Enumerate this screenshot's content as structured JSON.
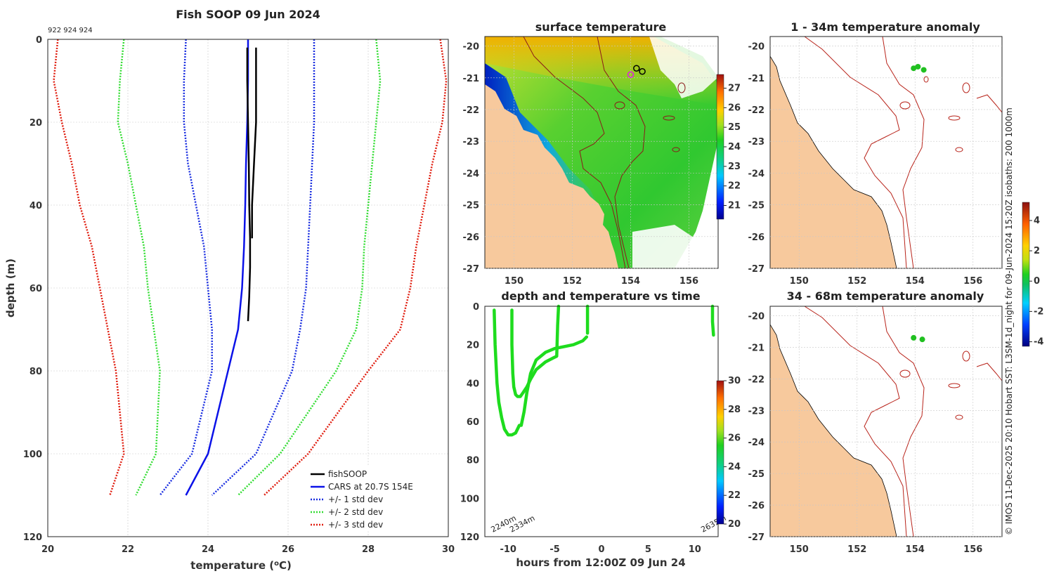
{
  "figure": {
    "title": "Fish SOOP 09 Jun 2024",
    "vessel_ids": "922 924 924",
    "side_credit": "© IMOS 11-Dec-2025 20:10 Hobart SST: L3SM-1d_night for 09-Jun-2024 15:20Z isobaths: 200  1000m",
    "colors": {
      "cars": "#0b12e8",
      "std1": "#1a2ee0",
      "std2": "#33dd33",
      "std3": "#e01e10",
      "soop": "#000000",
      "land": "#f7c99d",
      "track": "#1edc1e",
      "isobath": "#b8231a"
    }
  },
  "chart_data": [
    {
      "id": "profile",
      "type": "line",
      "title": "",
      "xlabel": "temperature (oC)",
      "ylabel": "depth (m)",
      "xlim": [
        20,
        30
      ],
      "ylim": [
        120,
        0
      ],
      "xticks": [
        20,
        22,
        24,
        26,
        28,
        30
      ],
      "yticks": [
        0,
        20,
        40,
        60,
        80,
        100,
        120
      ],
      "legend_location": "bottom-right",
      "legend": [
        "fishSOOP",
        "CARS at 20.7S 154E",
        "+/- 1 std dev",
        "+/- 2 std dev",
        "+/- 3 std dev"
      ],
      "series": [
        {
          "name": "CARS at 20.7S 154E",
          "style": "cars",
          "x": [
            25.0,
            25.0,
            24.98,
            24.95,
            24.93,
            24.9,
            24.85,
            24.75,
            24.5,
            24.0,
            23.45
          ],
          "y": [
            0,
            10,
            20,
            30,
            40,
            50,
            60,
            70,
            80,
            100,
            110
          ]
        },
        {
          "name": "-1 std",
          "style": "std1",
          "x": [
            23.45,
            23.4,
            23.4,
            23.5,
            23.7,
            23.9,
            24.0,
            24.1,
            24.1,
            23.6,
            22.8
          ],
          "y": [
            0,
            10,
            20,
            30,
            40,
            50,
            60,
            70,
            80,
            100,
            110
          ]
        },
        {
          "name": "+1 std",
          "style": "std1",
          "x": [
            26.65,
            26.65,
            26.65,
            26.6,
            26.55,
            26.5,
            26.45,
            26.3,
            26.1,
            25.2,
            24.1
          ],
          "y": [
            0,
            10,
            20,
            30,
            40,
            50,
            60,
            70,
            80,
            100,
            110
          ]
        },
        {
          "name": "-2 std",
          "style": "std2",
          "x": [
            21.9,
            21.8,
            21.75,
            22.0,
            22.2,
            22.4,
            22.5,
            22.65,
            22.8,
            22.7,
            22.2
          ],
          "y": [
            0,
            10,
            20,
            30,
            40,
            50,
            60,
            70,
            80,
            100,
            110
          ]
        },
        {
          "name": "+2 std",
          "style": "std2",
          "x": [
            28.2,
            28.3,
            28.2,
            28.1,
            28.0,
            27.9,
            27.85,
            27.7,
            27.2,
            25.8,
            24.75
          ],
          "y": [
            0,
            10,
            20,
            30,
            40,
            50,
            60,
            70,
            80,
            100,
            110
          ]
        },
        {
          "name": "-3 std",
          "style": "std3",
          "x": [
            20.25,
            20.15,
            20.35,
            20.6,
            20.8,
            21.1,
            21.3,
            21.5,
            21.7,
            21.9,
            21.55
          ],
          "y": [
            0,
            10,
            20,
            30,
            40,
            50,
            60,
            70,
            80,
            100,
            110
          ]
        },
        {
          "name": "+3 std",
          "style": "std3",
          "x": [
            29.8,
            29.95,
            29.85,
            29.6,
            29.4,
            29.2,
            29.05,
            28.8,
            28.0,
            26.5,
            25.4
          ],
          "y": [
            0,
            10,
            20,
            30,
            40,
            50,
            60,
            70,
            80,
            100,
            110
          ]
        },
        {
          "name": "fishSOOP",
          "style": "soop",
          "x": [
            24.98,
            24.98,
            25.0,
            25.02,
            25.03,
            25.05,
            25.05,
            25.03,
            25.0
          ],
          "y": [
            2,
            10,
            20,
            30,
            40,
            48,
            55,
            62,
            68
          ]
        },
        {
          "name": "fishSOOP cast 2",
          "style": "soop",
          "x": [
            25.2,
            25.2,
            25.2,
            25.15,
            25.1,
            25.1
          ],
          "y": [
            2,
            10,
            20,
            30,
            40,
            48
          ]
        }
      ]
    },
    {
      "id": "sst",
      "type": "heatmap",
      "title": "surface temperature",
      "xlim": [
        149,
        157
      ],
      "ylim": [
        -27,
        -19.7
      ],
      "xticks": [
        150,
        152,
        154,
        156
      ],
      "yticks": [
        -20,
        -21,
        -22,
        -23,
        -24,
        -25,
        -26,
        -27
      ],
      "colorbar": {
        "min": 20.3,
        "max": 27.7,
        "ticks": [
          21,
          22,
          23,
          24,
          25,
          26,
          27
        ]
      },
      "markers": [
        {
          "lon": 154.0,
          "lat": -20.9
        },
        {
          "lon": 154.2,
          "lat": -20.7
        },
        {
          "lon": 154.4,
          "lat": -20.8
        }
      ]
    },
    {
      "id": "timeseries",
      "type": "line",
      "title": "depth and temperature vs time",
      "xlabel": "hours from 12:00Z 09 Jun 24",
      "ylabel": "",
      "xlim": [
        -12.5,
        12.5
      ],
      "ylim": [
        120,
        0
      ],
      "xticks": [
        -10,
        -5,
        0,
        5,
        10
      ],
      "yticks": [
        0,
        20,
        40,
        60,
        80,
        100,
        120
      ],
      "colorbar": {
        "min": 20,
        "max": 30,
        "ticks": [
          20,
          22,
          24,
          26,
          28,
          30
        ]
      },
      "bottom_depth_labels": [
        {
          "text": "2240m",
          "x": -11.5
        },
        {
          "text": "2334m",
          "x": -9.5
        },
        {
          "text": "2635m",
          "x": 11.0
        }
      ],
      "series": [
        {
          "name": "cast 1",
          "x": [
            -11.5,
            -11.4,
            -11.2,
            -11.0,
            -10.7,
            -10.4,
            -10.0,
            -9.6,
            -9.2,
            -9.0,
            -8.8,
            -8.6,
            -8.3,
            -8.0,
            -7.6,
            -7.0,
            -6.0,
            -5.0,
            -4.0,
            -3.0,
            -2.0,
            -1.6
          ],
          "y": [
            2,
            20,
            40,
            50,
            58,
            64,
            67,
            67,
            66,
            64,
            62,
            62,
            55,
            45,
            35,
            28,
            24,
            22,
            21,
            20,
            18,
            16
          ]
        },
        {
          "name": "cast 2",
          "x": [
            -9.6,
            -9.6,
            -9.5,
            -9.4,
            -9.2,
            -9.0,
            -8.7,
            -8.4,
            -8.0,
            -7.6,
            -7.0,
            -6.0,
            -5.2,
            -4.8,
            -4.7,
            -4.6
          ],
          "y": [
            2,
            20,
            35,
            42,
            46,
            47,
            47,
            45,
            42,
            38,
            33,
            29,
            27,
            26,
            10,
            0
          ]
        },
        {
          "name": "cast 3",
          "x": [
            -1.5,
            -1.5,
            -1.5
          ],
          "y": [
            0,
            8,
            14
          ]
        },
        {
          "name": "cast 4",
          "x": [
            11.9,
            11.9,
            12.0
          ],
          "y": [
            0,
            8,
            15
          ]
        }
      ]
    },
    {
      "id": "anom_upper",
      "type": "heatmap",
      "title": "1 - 34m temperature anomaly",
      "xlim": [
        149,
        157
      ],
      "ylim": [
        -27,
        -19.7
      ],
      "xticks": [
        150,
        152,
        154,
        156
      ],
      "yticks": [
        -20,
        -21,
        -22,
        -23,
        -24,
        -25,
        -26,
        -27
      ],
      "colorbar": {
        "min": -4.3,
        "max": 5.2,
        "ticks": [
          -4,
          -2,
          0,
          2,
          4
        ]
      },
      "markers": [
        {
          "lon": 153.95,
          "lat": -20.7
        },
        {
          "lon": 154.1,
          "lat": -20.65
        },
        {
          "lon": 154.3,
          "lat": -20.75
        }
      ]
    },
    {
      "id": "anom_lower",
      "type": "heatmap",
      "title": "34 - 68m temperature anomaly",
      "xlim": [
        149,
        157
      ],
      "ylim": [
        -27,
        -19.7
      ],
      "xticks": [
        150,
        152,
        154,
        156
      ],
      "yticks": [
        -20,
        -21,
        -22,
        -23,
        -24,
        -25,
        -26,
        -27
      ],
      "markers": [
        {
          "lon": 153.95,
          "lat": -20.7
        },
        {
          "lon": 154.25,
          "lat": -20.75
        }
      ]
    }
  ]
}
